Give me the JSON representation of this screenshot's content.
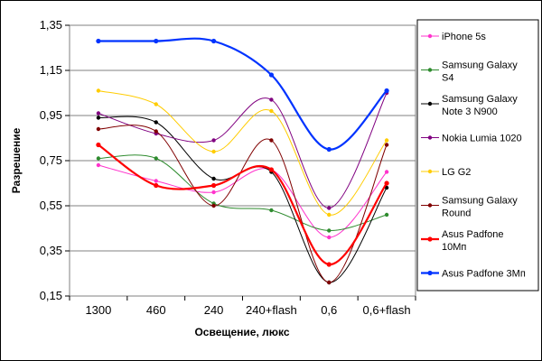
{
  "chart_data": {
    "type": "line",
    "title": "",
    "xlabel": "Освещение, люкс",
    "ylabel": "Разрешение",
    "categories": [
      "1300",
      "460",
      "240",
      "240+flash",
      "0,6",
      "0,6+flash"
    ],
    "ylim": [
      0.15,
      1.35
    ],
    "yticks": [
      0.15,
      0.35,
      0.55,
      0.75,
      0.95,
      1.15,
      1.35
    ],
    "ytick_labels": [
      "0,15",
      "0,35",
      "0,55",
      "0,75",
      "0,95",
      "1,15",
      "1,35"
    ],
    "grid": true,
    "legend_position": "right",
    "series": [
      {
        "name": "iPhone 5s",
        "color": "#ff33cc",
        "values": [
          0.73,
          0.66,
          0.61,
          0.71,
          0.41,
          0.7
        ]
      },
      {
        "name": "Samsung Galaxy S4",
        "color": "#2e8b2e",
        "values": [
          0.76,
          0.76,
          0.56,
          0.53,
          0.44,
          0.51
        ]
      },
      {
        "name": "Samsung Galaxy Note 3 N900",
        "color": "#000000",
        "values": [
          0.94,
          0.92,
          0.67,
          0.7,
          0.21,
          0.63
        ]
      },
      {
        "name": "Nokia Lumia 1020",
        "color": "#800080",
        "values": [
          0.96,
          0.87,
          0.84,
          1.02,
          0.54,
          1.05
        ]
      },
      {
        "name": "LG G2",
        "color": "#ffcc00",
        "values": [
          1.06,
          1.0,
          0.79,
          0.97,
          0.51,
          0.84
        ]
      },
      {
        "name": "Samsung Galaxy Round",
        "color": "#800000",
        "values": [
          0.89,
          0.88,
          0.55,
          0.84,
          0.21,
          0.82
        ]
      },
      {
        "name": "Asus Padfone 10Мп",
        "color": "#ff0000",
        "values": [
          0.82,
          0.64,
          0.64,
          0.71,
          0.29,
          0.65
        ]
      },
      {
        "name": "Asus Padfone 3Мп",
        "color": "#0033ff",
        "values": [
          1.28,
          1.28,
          1.28,
          1.13,
          0.8,
          1.06
        ]
      }
    ]
  },
  "legend_items": [
    [
      "iPhone 5s"
    ],
    [
      "Samsung Galaxy",
      "S4"
    ],
    [
      "Samsung Galaxy",
      "Note 3 N900"
    ],
    [
      "Nokia Lumia 1020"
    ],
    [
      "LG G2"
    ],
    [
      "Samsung Galaxy",
      "Round"
    ],
    [
      "Asus Padfone",
      "10Мп"
    ],
    [
      "Asus Padfone 3Мп"
    ]
  ]
}
